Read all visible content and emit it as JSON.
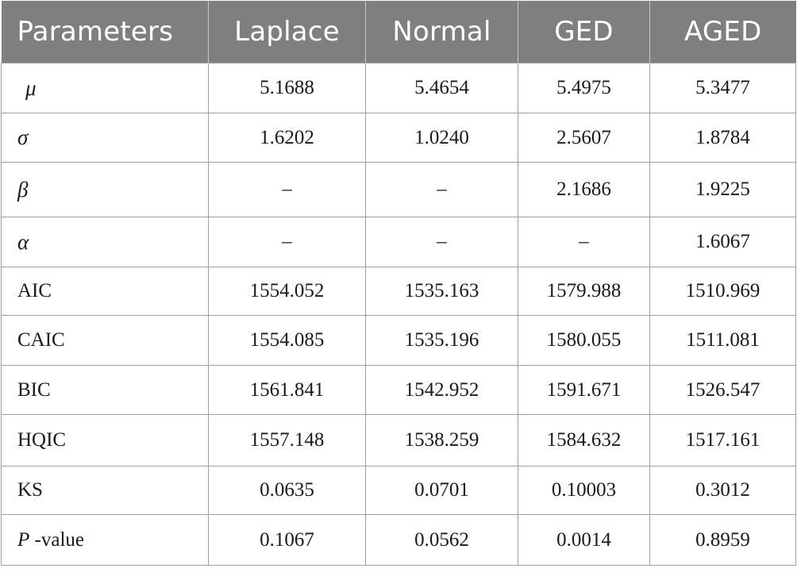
{
  "chart_data": {
    "type": "table",
    "columns": [
      "Parameters",
      "Laplace",
      "Normal",
      "GED",
      "AGED"
    ],
    "rows": [
      {
        "label": "μ",
        "values": [
          "5.1688",
          "5.4654",
          "5.4975",
          "5.3477"
        ]
      },
      {
        "label": "σ",
        "values": [
          "1.6202",
          "1.0240",
          "2.5607",
          "1.8784"
        ]
      },
      {
        "label": "β",
        "values": [
          "–",
          "–",
          "2.1686",
          "1.9225"
        ]
      },
      {
        "label": "α",
        "values": [
          "–",
          "–",
          "–",
          "1.6067"
        ]
      },
      {
        "label": "AIC",
        "values": [
          "1554.052",
          "1535.163",
          "1579.988",
          "1510.969"
        ]
      },
      {
        "label": "CAIC",
        "values": [
          "1554.085",
          "1535.196",
          "1580.055",
          "1511.081"
        ]
      },
      {
        "label": "BIC",
        "values": [
          "1561.841",
          "1542.952",
          "1591.671",
          "1526.547"
        ]
      },
      {
        "label": "HQIC",
        "values": [
          "1557.148",
          "1538.259",
          "1584.632",
          "1517.161"
        ]
      },
      {
        "label": "KS",
        "values": [
          "0.0635",
          "0.0701",
          "0.10003",
          "0.3012"
        ]
      },
      {
        "label_italic": "P",
        "label_rest": " -value",
        "values": [
          "0.1067",
          "0.0562",
          "0.0014",
          "0.8959"
        ]
      }
    ]
  },
  "colors": {
    "header_bg": "#7f7f7f",
    "header_text": "#ffffff",
    "grid": "#9e9e9e"
  }
}
